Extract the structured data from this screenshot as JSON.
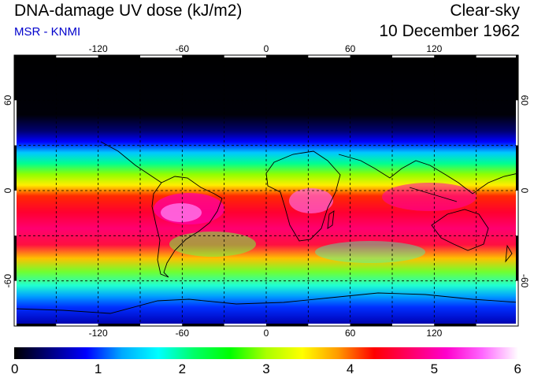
{
  "header": {
    "title": "DNA-damage UV dose (kJ/m2)",
    "source": "MSR - KNMI",
    "condition": "Clear-sky",
    "date": "10 December 1962"
  },
  "map": {
    "projection": "equirectangular",
    "lon_range": [
      -180,
      180
    ],
    "lat_range": [
      -90,
      90
    ],
    "lon_ticks": [
      "-120",
      "-60",
      "0",
      "60",
      "120"
    ],
    "lat_ticks_left": [
      "60",
      "0",
      "-60"
    ],
    "lat_ticks_right": [
      "60",
      "0",
      "-60"
    ],
    "gridlines": "dashed every 30 degrees"
  },
  "colorbar": {
    "min": 0,
    "max": 6,
    "labels": [
      "0",
      "1",
      "2",
      "3",
      "4",
      "5",
      "6"
    ],
    "stops": [
      "#000000",
      "#000080",
      "#0000ff",
      "#00aaff",
      "#00ffff",
      "#00ff66",
      "#00ff00",
      "#aaff00",
      "#ffff00",
      "#ff9900",
      "#ff0000",
      "#ff0066",
      "#ff00cc",
      "#ff66ff",
      "#ffffff"
    ]
  }
}
